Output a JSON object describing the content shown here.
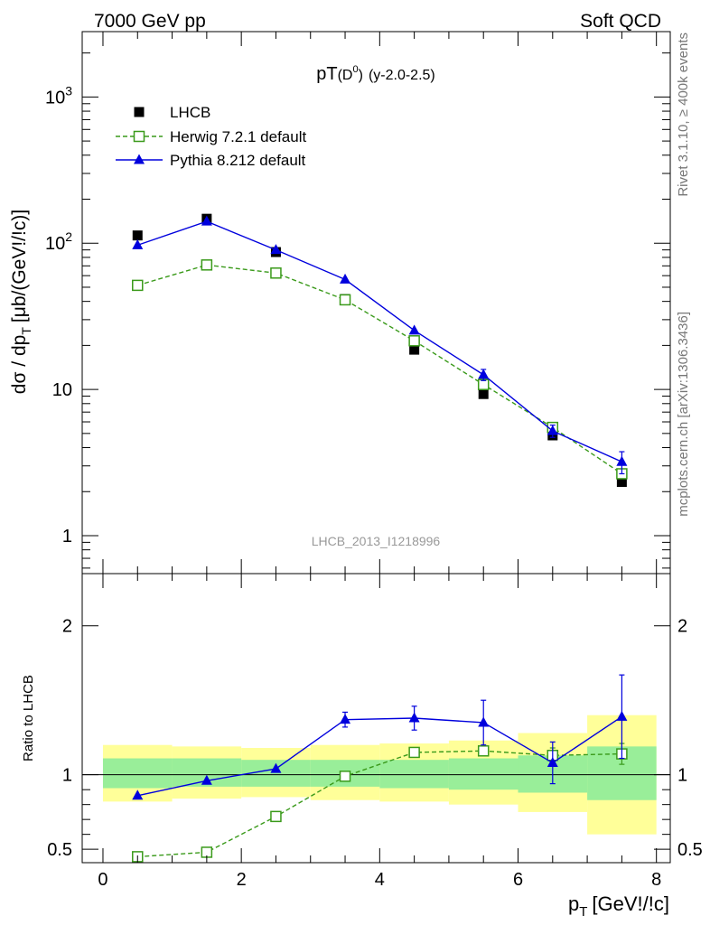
{
  "header": {
    "left": "7000 GeV pp",
    "right": "Soft QCD"
  },
  "side_labels": {
    "rivet": "Rivet 3.1.10, ≥ 400k events",
    "mcplots": "mcplots.cern.ch [arXiv:1306.3436]"
  },
  "chart_data": [
    {
      "type": "scatter",
      "panel": "main",
      "title_main": "pT",
      "title_sub": "(D",
      "title_sup": "0",
      "title_close": ")",
      "title_extra": "(y-2.0-2.5)",
      "ylabel": "dσ / dp",
      "ylabel_sub": "T",
      "ylabel_tail": "[μb/(GeV!/!c)]",
      "yscale": "log",
      "ylim": [
        0.55,
        2800
      ],
      "xlim": [
        -0.3,
        8.2
      ],
      "yticks": [
        {
          "v": 1,
          "label": "1"
        },
        {
          "v": 10,
          "label": "10"
        },
        {
          "v": 100,
          "label": "10",
          "sup": "2"
        },
        {
          "v": 1000,
          "label": "10",
          "sup": "3"
        }
      ],
      "watermark": "LHCB_2013_I1218996",
      "legend_position": "top-left",
      "series": [
        {
          "name": "LHCB",
          "style": "data",
          "color": "#000000",
          "x": [
            0.5,
            1.5,
            2.5,
            3.5,
            4.5,
            5.5,
            6.5,
            7.5
          ],
          "y": [
            113,
            147,
            87,
            41.5,
            18.7,
            9.3,
            4.85,
            2.33
          ]
        },
        {
          "name": "Herwig 7.2.1 default",
          "style": "dashed-open-square",
          "color": "#3a9a1a",
          "x": [
            0.5,
            1.5,
            2.5,
            3.5,
            4.5,
            5.5,
            6.5,
            7.5
          ],
          "y": [
            51.5,
            71,
            62.5,
            41,
            21.5,
            10.8,
            5.5,
            2.65
          ]
        },
        {
          "name": "Pythia 8.212 default",
          "style": "solid-triangle",
          "color": "#0000dd",
          "x": [
            0.5,
            1.5,
            2.5,
            3.5,
            4.5,
            5.5,
            6.5,
            7.5
          ],
          "y": [
            97,
            141,
            90,
            56.5,
            25.3,
            12.6,
            5.2,
            3.2
          ],
          "yerr": [
            0,
            0,
            0,
            0,
            0,
            1.1,
            0.5,
            0.55
          ]
        }
      ]
    },
    {
      "type": "scatter",
      "panel": "ratio",
      "ylabel": "Ratio to LHCB",
      "xlabel": "p",
      "xlabel_sub": "T",
      "xlabel_tail": "[GeV!/!c]",
      "ylim": [
        0.41,
        2.35
      ],
      "xlim": [
        -0.3,
        8.2
      ],
      "xticks": [
        0,
        2,
        4,
        6,
        8
      ],
      "yticks": [
        {
          "v": 0.5,
          "label": "0.5"
        },
        {
          "v": 1,
          "label": "1"
        },
        {
          "v": 2,
          "label": "2"
        }
      ],
      "bands": {
        "bins": [
          [
            0,
            1
          ],
          [
            1,
            2
          ],
          [
            2,
            3
          ],
          [
            3,
            4
          ],
          [
            4,
            5
          ],
          [
            5,
            6
          ],
          [
            6,
            7
          ],
          [
            7,
            8
          ]
        ],
        "stat_color": "#99ee99",
        "syst_color": "#ffff99",
        "inner_lo": [
          0.91,
          0.92,
          0.92,
          0.92,
          0.91,
          0.9,
          0.88,
          0.83
        ],
        "inner_hi": [
          1.11,
          1.11,
          1.1,
          1.1,
          1.1,
          1.11,
          1.13,
          1.19
        ],
        "outer_lo": [
          0.82,
          0.84,
          0.85,
          0.83,
          0.82,
          0.8,
          0.75,
          0.6
        ],
        "outer_hi": [
          1.2,
          1.19,
          1.18,
          1.2,
          1.21,
          1.23,
          1.28,
          1.4
        ]
      },
      "series": [
        {
          "name": "Herwig 7.2.1 default",
          "style": "dashed-open-square",
          "color": "#3a9a1a",
          "x": [
            0.5,
            1.5,
            2.5,
            3.5,
            4.5,
            5.5,
            6.5,
            7.5
          ],
          "y": [
            0.45,
            0.48,
            0.72,
            0.99,
            1.15,
            1.16,
            1.13,
            1.14
          ],
          "yerr": [
            0,
            0,
            0,
            0,
            0,
            0,
            0.05,
            0.07
          ]
        },
        {
          "name": "Pythia 8.212 default",
          "style": "solid-triangle",
          "color": "#0000dd",
          "x": [
            0.5,
            1.5,
            2.5,
            3.5,
            4.5,
            5.5,
            6.5,
            7.5
          ],
          "y": [
            0.86,
            0.96,
            1.04,
            1.37,
            1.38,
            1.35,
            1.08,
            1.39
          ],
          "yerr": [
            0,
            0,
            0,
            0.05,
            0.08,
            0.15,
            0.14,
            0.28
          ]
        }
      ]
    }
  ]
}
